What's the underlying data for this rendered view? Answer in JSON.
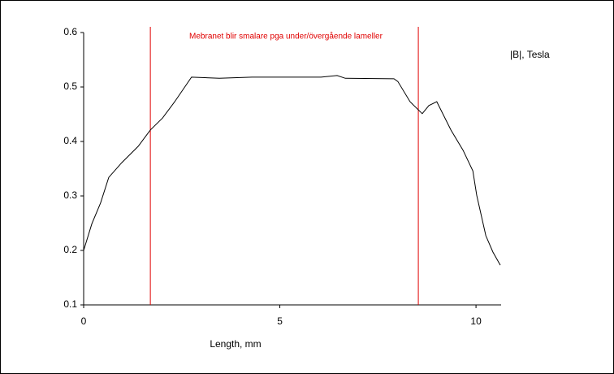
{
  "chart_data": {
    "type": "line",
    "annotation": "Mebranet blir smalare pga under/övergående lameller",
    "annotation_color": "#e00000",
    "markers": [
      1.7,
      8.53
    ],
    "marker_color": "#e00000",
    "x_label": "Length, mm",
    "x": [
      0,
      0.21,
      0.43,
      0.64,
      0.97,
      1.39,
      1.7,
      2.01,
      2.32,
      2.75,
      3.46,
      4.29,
      5.32,
      6.05,
      6.46,
      6.67,
      7.91,
      8.01,
      8.32,
      8.63,
      8.8,
      9.0,
      9.36,
      9.67,
      9.92,
      10.02,
      10.25,
      10.43,
      10.62
    ],
    "series": [
      {
        "name": "|B|, Tesla",
        "color": "#000000",
        "values": [
          0.2,
          0.249,
          0.287,
          0.334,
          0.361,
          0.391,
          0.421,
          0.443,
          0.473,
          0.518,
          0.516,
          0.518,
          0.518,
          0.518,
          0.521,
          0.516,
          0.515,
          0.51,
          0.473,
          0.451,
          0.466,
          0.473,
          0.421,
          0.384,
          0.346,
          0.301,
          0.227,
          0.197,
          0.173
        ]
      }
    ],
    "xlim": [
      0,
      10.64
    ],
    "xticks": [
      0,
      5,
      10
    ],
    "ylim": [
      0.1,
      0.6
    ],
    "yticks": [
      0.1,
      0.2,
      0.3,
      0.4,
      0.5,
      0.6
    ],
    "grid": false
  }
}
